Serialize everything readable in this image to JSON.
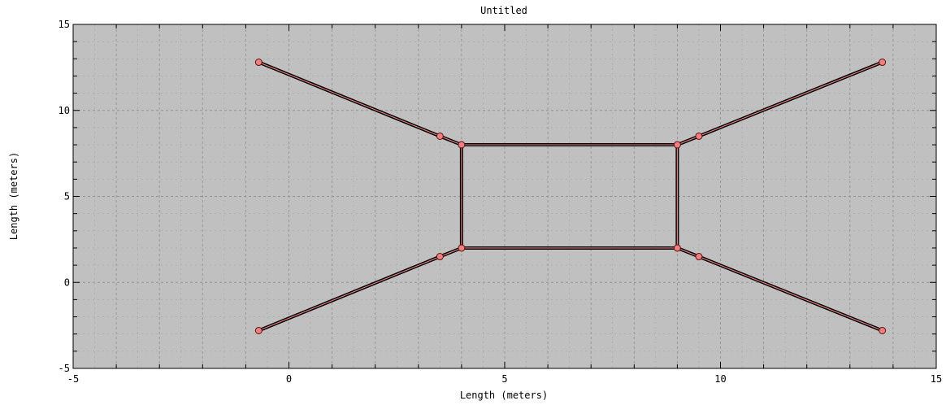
{
  "chart_data": {
    "type": "line",
    "title": "Untitled",
    "xlabel": "Length (meters)",
    "ylabel": "Length (meters)",
    "xlim": [
      -5,
      15
    ],
    "ylim": [
      -5,
      15
    ],
    "xticks": [
      -5,
      0,
      5,
      10,
      15
    ],
    "yticks": [
      -5,
      0,
      5,
      10,
      15
    ],
    "grid": true,
    "colors": {
      "background": "#c0c0c0",
      "grid": "#8e8e8e",
      "line_outer": "#000000",
      "line_inner": "#e08080",
      "marker_fill": "#f08080",
      "marker_edge": "#5a1010"
    },
    "segments": [
      {
        "x": [
          -0.7,
          3.5
        ],
        "y": [
          12.8,
          8.5
        ]
      },
      {
        "x": [
          3.5,
          4.0
        ],
        "y": [
          8.5,
          8.0
        ]
      },
      {
        "x": [
          4.0,
          9.0
        ],
        "y": [
          8.0,
          8.0
        ]
      },
      {
        "x": [
          9.0,
          9.5
        ],
        "y": [
          8.0,
          8.5
        ]
      },
      {
        "x": [
          9.5,
          13.75
        ],
        "y": [
          8.5,
          12.8
        ]
      },
      {
        "x": [
          4.0,
          4.0
        ],
        "y": [
          8.0,
          2.0
        ]
      },
      {
        "x": [
          9.0,
          9.0
        ],
        "y": [
          8.0,
          2.0
        ]
      },
      {
        "x": [
          -0.7,
          3.5
        ],
        "y": [
          -2.8,
          1.5
        ]
      },
      {
        "x": [
          3.5,
          4.0
        ],
        "y": [
          1.5,
          2.0
        ]
      },
      {
        "x": [
          4.0,
          9.0
        ],
        "y": [
          2.0,
          2.0
        ]
      },
      {
        "x": [
          9.0,
          9.5
        ],
        "y": [
          2.0,
          1.5
        ]
      },
      {
        "x": [
          9.5,
          13.75
        ],
        "y": [
          1.5,
          -2.8
        ]
      }
    ],
    "points": [
      {
        "x": -0.7,
        "y": 12.8
      },
      {
        "x": 3.5,
        "y": 8.5
      },
      {
        "x": 4.0,
        "y": 8.0
      },
      {
        "x": 9.0,
        "y": 8.0
      },
      {
        "x": 9.5,
        "y": 8.5
      },
      {
        "x": 13.75,
        "y": 12.8
      },
      {
        "x": -0.7,
        "y": -2.8
      },
      {
        "x": 3.5,
        "y": 1.5
      },
      {
        "x": 4.0,
        "y": 2.0
      },
      {
        "x": 9.0,
        "y": 2.0
      },
      {
        "x": 9.5,
        "y": 1.5
      },
      {
        "x": 13.75,
        "y": -2.8
      }
    ]
  }
}
